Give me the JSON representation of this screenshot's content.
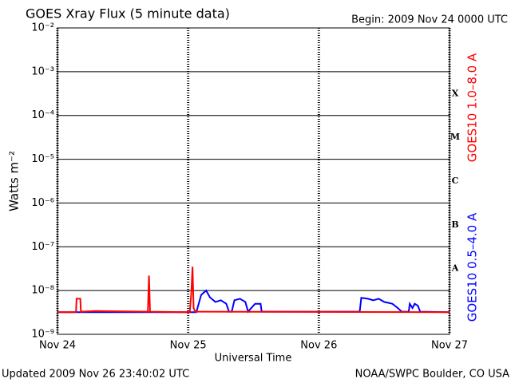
{
  "chart_data": {
    "type": "line",
    "title": "GOES Xray Flux (5 minute data)",
    "subtitle": "Begin:  2009 Nov 24 0000 UTC",
    "xlabel": "Universal Time",
    "ylabel": "Watts m⁻²",
    "footer_left": "Updated 2009 Nov 26 23:40:02 UTC",
    "footer_right": "NOAA/SWPC Boulder, CO USA",
    "log_y": true,
    "grid": true,
    "xlim": [
      0,
      72
    ],
    "xticks": [
      {
        "value": 0,
        "label": "Nov 24"
      },
      {
        "value": 24,
        "label": "Nov 25"
      },
      {
        "value": 48,
        "label": "Nov 26"
      },
      {
        "value": 72,
        "label": "Nov 27"
      }
    ],
    "ylim": [
      1e-09,
      0.01
    ],
    "yticks": [
      {
        "value": 1e-09,
        "label": "10⁻⁹"
      },
      {
        "value": 1e-08,
        "label": "10⁻⁸"
      },
      {
        "value": 1e-07,
        "label": "10⁻⁷"
      },
      {
        "value": 1e-06,
        "label": "10⁻⁶"
      },
      {
        "value": 1e-05,
        "label": "10⁻⁵"
      },
      {
        "value": 0.0001,
        "label": "10⁻⁴"
      },
      {
        "value": 0.001,
        "label": "10⁻³"
      },
      {
        "value": 0.01,
        "label": "10⁻²"
      }
    ],
    "flare_classes": [
      {
        "label": "X",
        "value": 0.0001
      },
      {
        "label": "M",
        "value": 1e-05
      },
      {
        "label": "C",
        "value": 1e-06
      },
      {
        "label": "B",
        "value": 1e-07
      },
      {
        "label": "A",
        "value": 1e-08
      }
    ],
    "series": [
      {
        "name": "GOES10 1.0–8.0 A",
        "color": "#ff0000",
        "x": [
          0,
          3.4,
          3.5,
          4.2,
          4.3,
          7,
          16.6,
          16.8,
          17.0,
          24.3,
          24.6,
          24.8,
          25.0,
          25.3,
          72
        ],
        "values": [
          3.2e-09,
          3.2e-09,
          6.5e-09,
          6.5e-09,
          3.3e-09,
          3.4e-09,
          3.3e-09,
          2.2e-08,
          3.3e-09,
          3.2e-09,
          1e-08,
          3.5e-08,
          4e-09,
          3.3e-09,
          3.2e-09
        ]
      },
      {
        "name": "GOES10 0.5–4.0 A",
        "color": "#0000ff",
        "x": [
          0,
          25.5,
          26.4,
          27.3,
          28,
          29,
          30,
          31,
          31.5,
          32,
          32.5,
          33.5,
          34.5,
          35,
          36.3,
          37.3,
          37.5,
          55.5,
          55.8,
          57,
          58,
          59,
          60,
          61.5,
          62.5,
          63.2,
          64.5,
          64.7,
          65.2,
          65.6,
          66.2,
          66.6,
          72
        ],
        "values": [
          3.2e-09,
          3.2e-09,
          8e-09,
          1e-08,
          7e-09,
          5.5e-09,
          6e-09,
          5e-09,
          3.3e-09,
          3.3e-09,
          6e-09,
          6.5e-09,
          5.5e-09,
          3.3e-09,
          5e-09,
          5e-09,
          3.3e-09,
          3.3e-09,
          6.8e-09,
          6.5e-09,
          6e-09,
          6.5e-09,
          5.5e-09,
          5e-09,
          4e-09,
          3.3e-09,
          3.3e-09,
          5e-09,
          4e-09,
          5e-09,
          4.5e-09,
          3.3e-09,
          3.2e-09
        ]
      }
    ]
  }
}
